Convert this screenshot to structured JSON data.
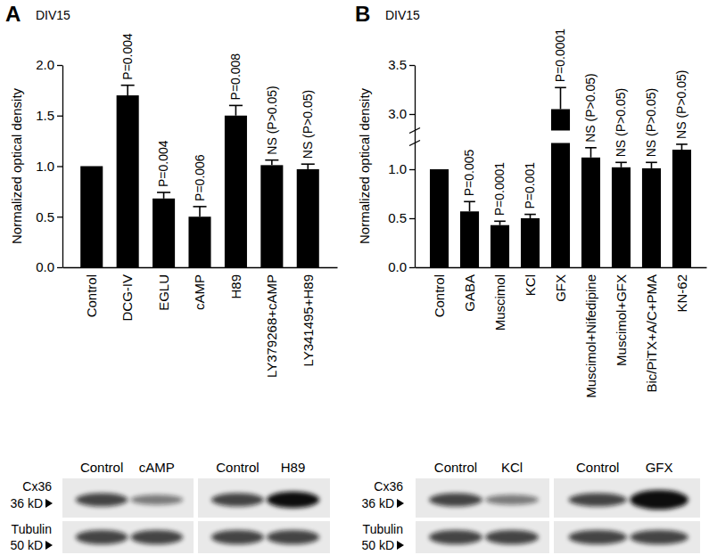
{
  "chart_data": [
    {
      "type": "bar",
      "title": "A",
      "subtitle": "DIV15",
      "y_label": "Normalized optical density",
      "categories": [
        "Control",
        "DCG-IV",
        "EGLU",
        "cAMP",
        "H89",
        "LY379268+cAMP",
        "LY341495+H89"
      ],
      "values": [
        1.0,
        1.7,
        0.68,
        0.5,
        1.5,
        1.01,
        0.97
      ],
      "errors": [
        null,
        0.1,
        0.06,
        0.1,
        0.1,
        0.05,
        0.05
      ],
      "annotations": [
        null,
        "P=0.004",
        "P=0.004",
        "P=0.006",
        "P=0.008",
        "NS (P>0.05)",
        "NS (P>0.05)"
      ],
      "color": "#000000",
      "ylim": [
        0,
        2
      ],
      "yticks": [
        {
          "value": 0,
          "label": "0.0"
        },
        {
          "value": 0.5,
          "label": "0.5"
        },
        {
          "value": 1,
          "label": "1.0"
        },
        {
          "value": 1.5,
          "label": "1.5"
        },
        {
          "value": 2,
          "label": "2.0"
        }
      ]
    },
    {
      "type": "bar",
      "title": "B",
      "subtitle": "DIV15",
      "y_label": "Normalized optical density",
      "categories": [
        "Control",
        "GABA",
        "Muscimol",
        "KCl",
        "GFX",
        "Muscimol+Nifedipine",
        "Muscimol+GFX",
        "Bic/PiTX+A/C+PMA",
        "KN-62"
      ],
      "values": [
        1.0,
        0.57,
        0.43,
        0.5,
        3.05,
        1.12,
        1.02,
        1.01,
        1.2
      ],
      "errors": [
        null,
        0.1,
        0.04,
        0.04,
        0.22,
        0.1,
        0.05,
        0.06,
        0.1
      ],
      "annotations": [
        null,
        "P=0.005",
        "P=0.0001",
        "P=0.001",
        "P=0.0001",
        "NS (P>0.05)",
        "NS (P>0.05)",
        "NS (P>0.05)",
        "NS (P>0.05)"
      ],
      "color": "#000000",
      "ylim": [
        0,
        3.5
      ],
      "y_break": [
        1.25,
        2.85
      ],
      "yticks": [
        {
          "value": 0,
          "label": "0.0"
        },
        {
          "value": 0.5,
          "label": "0.5"
        },
        {
          "value": 1,
          "label": "1.0"
        },
        {
          "value": 3,
          "label": "3.0"
        },
        {
          "value": 3.5,
          "label": "3.5"
        }
      ]
    }
  ],
  "blots": [
    {
      "rows": [
        {
          "name": "Cx36",
          "size": "36 kD"
        },
        {
          "name": "Tubulin",
          "size": "50 kD"
        }
      ],
      "lanes": [
        [
          "Control",
          "cAMP"
        ],
        [
          "Control",
          "H89"
        ]
      ]
    },
    {
      "rows": [
        {
          "name": "Cx36",
          "size": "36 kD"
        },
        {
          "name": "Tubulin",
          "size": "50 kD"
        }
      ],
      "lanes": [
        [
          "Control",
          "KCl"
        ],
        [
          "Control",
          "GFX"
        ]
      ]
    }
  ]
}
